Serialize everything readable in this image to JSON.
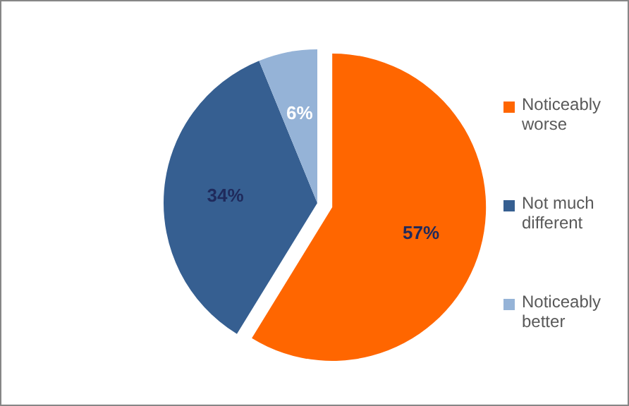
{
  "chart_data": {
    "type": "pie",
    "categories": [
      "Noticeably worse",
      "Not much different",
      "Noticeably better"
    ],
    "values": [
      57,
      34,
      6
    ],
    "colors": [
      "#ff6600",
      "#365f91",
      "#95b3d7"
    ],
    "value_labels": [
      "57%",
      "34%",
      "6%"
    ],
    "legend": "right"
  }
}
